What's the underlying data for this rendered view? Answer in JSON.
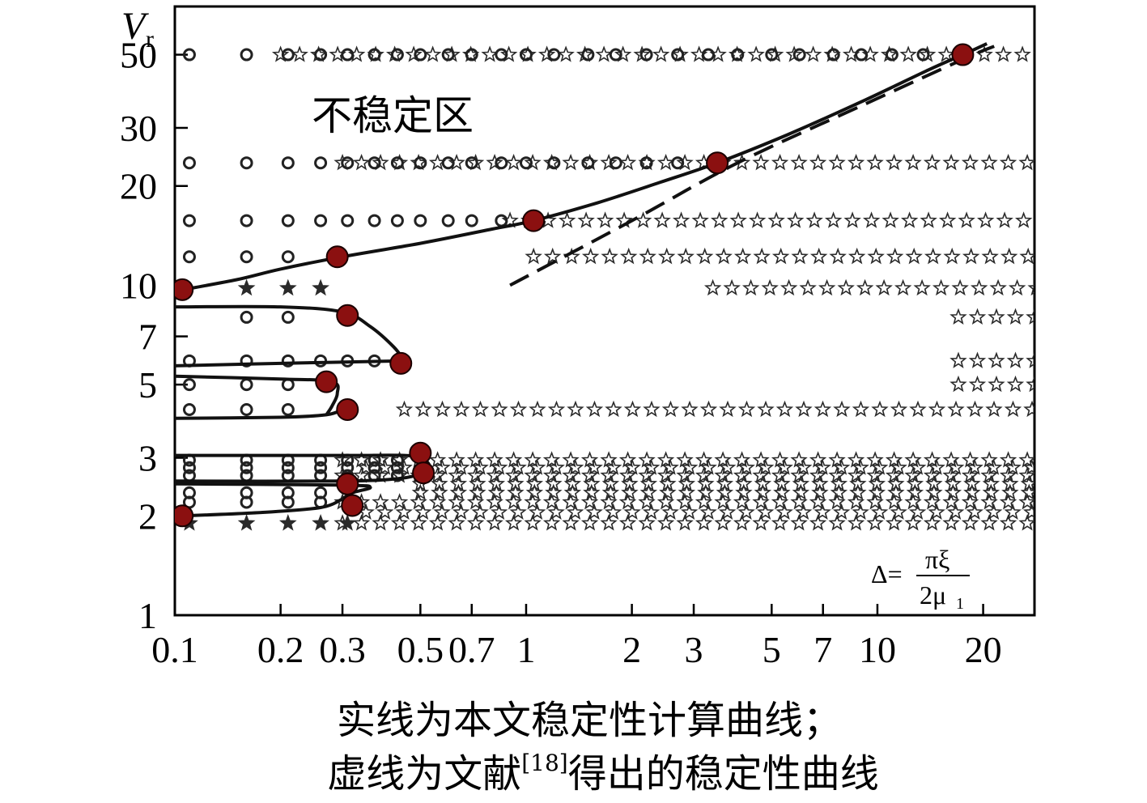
{
  "chart_data": {
    "type": "scatter",
    "title": "",
    "xlabel": "",
    "ylabel": "V",
    "ylabel_subscript": "r",
    "xscale": "log",
    "yscale": "log",
    "xlim": [
      0.1,
      28
    ],
    "ylim": [
      1,
      70
    ],
    "x_ticks": [
      0.1,
      0.2,
      0.3,
      0.5,
      0.7,
      1,
      2,
      3,
      5,
      7,
      10,
      20
    ],
    "x_tick_labels": [
      "0.1",
      "0.2",
      "0.3",
      "0.5",
      "0.7",
      "1",
      "2",
      "3",
      "5",
      "7",
      "10",
      "20"
    ],
    "y_ticks": [
      1,
      2,
      3,
      5,
      7,
      10,
      20,
      30,
      50
    ],
    "y_tick_labels": [
      "1",
      "2",
      "3",
      "5",
      "7",
      "10",
      "20",
      "30",
      "50"
    ],
    "grid": false,
    "legend": "none",
    "region_label": "不稳定区",
    "formula": {
      "lhs": "Δ=",
      "numerator": "πξ",
      "denominator": "2μ",
      "denominator_sub": "1"
    },
    "sample_levels": [
      50,
      23.5,
      15.7,
      12.2,
      9.8,
      8.0,
      5.9,
      5.0,
      4.2,
      2.95,
      2.8,
      2.65,
      2.5,
      2.35,
      2.2,
      2.05,
      1.9
    ],
    "boundary_x": [
      0.2,
      0.3,
      0.9,
      1.05,
      3.4,
      17,
      17,
      17,
      0.45,
      0.3,
      0.35,
      0.3,
      0.5,
      0.5,
      0.3,
      0.35,
      0.3,
      0.3,
      0.3,
      0.3,
      0.3
    ],
    "series": [
      {
        "role": "circles",
        "color": "#222222",
        "points": [
          {
            "x": 0.11,
            "y": 50
          },
          {
            "x": 0.16,
            "y": 50
          },
          {
            "x": 0.21,
            "y": 50
          },
          {
            "x": 0.26,
            "y": 50
          },
          {
            "x": 0.31,
            "y": 50
          },
          {
            "x": 0.37,
            "y": 50
          },
          {
            "x": 0.43,
            "y": 50
          },
          {
            "x": 0.5,
            "y": 50
          },
          {
            "x": 0.6,
            "y": 50
          },
          {
            "x": 0.7,
            "y": 50
          },
          {
            "x": 0.85,
            "y": 50
          },
          {
            "x": 1.0,
            "y": 50
          },
          {
            "x": 1.2,
            "y": 50
          },
          {
            "x": 1.5,
            "y": 50
          },
          {
            "x": 1.8,
            "y": 50
          },
          {
            "x": 2.2,
            "y": 50
          },
          {
            "x": 2.7,
            "y": 50
          },
          {
            "x": 3.3,
            "y": 50
          },
          {
            "x": 4.0,
            "y": 50
          },
          {
            "x": 5.0,
            "y": 50
          },
          {
            "x": 6.0,
            "y": 50
          },
          {
            "x": 7.5,
            "y": 50
          },
          {
            "x": 9.0,
            "y": 50
          },
          {
            "x": 11,
            "y": 50
          },
          {
            "x": 13.5,
            "y": 50
          },
          {
            "x": 0.11,
            "y": 23.5
          },
          {
            "x": 0.16,
            "y": 23.5
          },
          {
            "x": 0.21,
            "y": 23.5
          },
          {
            "x": 0.26,
            "y": 23.5
          },
          {
            "x": 0.31,
            "y": 23.5
          },
          {
            "x": 0.37,
            "y": 23.5
          },
          {
            "x": 0.43,
            "y": 23.5
          },
          {
            "x": 0.5,
            "y": 23.5
          },
          {
            "x": 0.6,
            "y": 23.5
          },
          {
            "x": 0.7,
            "y": 23.5
          },
          {
            "x": 0.85,
            "y": 23.5
          },
          {
            "x": 1.0,
            "y": 23.5
          },
          {
            "x": 1.2,
            "y": 23.5
          },
          {
            "x": 1.5,
            "y": 23.5
          },
          {
            "x": 1.8,
            "y": 23.5
          },
          {
            "x": 2.2,
            "y": 23.5
          },
          {
            "x": 2.7,
            "y": 23.5
          },
          {
            "x": 0.11,
            "y": 15.7
          },
          {
            "x": 0.16,
            "y": 15.7
          },
          {
            "x": 0.21,
            "y": 15.7
          },
          {
            "x": 0.26,
            "y": 15.7
          },
          {
            "x": 0.31,
            "y": 15.7
          },
          {
            "x": 0.37,
            "y": 15.7
          },
          {
            "x": 0.43,
            "y": 15.7
          },
          {
            "x": 0.5,
            "y": 15.7
          },
          {
            "x": 0.6,
            "y": 15.7
          },
          {
            "x": 0.7,
            "y": 15.7
          },
          {
            "x": 0.85,
            "y": 15.7
          },
          {
            "x": 0.11,
            "y": 12.2
          },
          {
            "x": 0.16,
            "y": 12.2
          },
          {
            "x": 0.21,
            "y": 12.2
          },
          {
            "x": 0.16,
            "y": 8.0
          },
          {
            "x": 0.21,
            "y": 8.0
          },
          {
            "x": 0.11,
            "y": 5.9
          },
          {
            "x": 0.16,
            "y": 5.9
          },
          {
            "x": 0.21,
            "y": 5.9
          },
          {
            "x": 0.26,
            "y": 5.9
          },
          {
            "x": 0.31,
            "y": 5.9
          },
          {
            "x": 0.37,
            "y": 5.9
          },
          {
            "x": 0.11,
            "y": 5.0
          },
          {
            "x": 0.16,
            "y": 5.0
          },
          {
            "x": 0.21,
            "y": 5.0
          },
          {
            "x": 0.11,
            "y": 4.2
          },
          {
            "x": 0.16,
            "y": 4.2
          },
          {
            "x": 0.21,
            "y": 4.2
          },
          {
            "x": 0.11,
            "y": 2.95
          },
          {
            "x": 0.16,
            "y": 2.95
          },
          {
            "x": 0.21,
            "y": 2.95
          },
          {
            "x": 0.26,
            "y": 2.95
          },
          {
            "x": 0.31,
            "y": 2.95
          },
          {
            "x": 0.37,
            "y": 2.95
          },
          {
            "x": 0.43,
            "y": 2.95
          },
          {
            "x": 0.11,
            "y": 2.8
          },
          {
            "x": 0.16,
            "y": 2.8
          },
          {
            "x": 0.21,
            "y": 2.8
          },
          {
            "x": 0.26,
            "y": 2.8
          },
          {
            "x": 0.31,
            "y": 2.8
          },
          {
            "x": 0.37,
            "y": 2.8
          },
          {
            "x": 0.43,
            "y": 2.8
          },
          {
            "x": 0.11,
            "y": 2.65
          },
          {
            "x": 0.16,
            "y": 2.65
          },
          {
            "x": 0.21,
            "y": 2.65
          },
          {
            "x": 0.26,
            "y": 2.65
          },
          {
            "x": 0.31,
            "y": 2.65
          },
          {
            "x": 0.37,
            "y": 2.65
          },
          {
            "x": 0.43,
            "y": 2.65
          },
          {
            "x": 0.11,
            "y": 2.35
          },
          {
            "x": 0.16,
            "y": 2.35
          },
          {
            "x": 0.21,
            "y": 2.35
          },
          {
            "x": 0.26,
            "y": 2.35
          },
          {
            "x": 0.11,
            "y": 2.2
          },
          {
            "x": 0.16,
            "y": 2.2
          },
          {
            "x": 0.21,
            "y": 2.2
          },
          {
            "x": 0.26,
            "y": 2.2
          }
        ]
      },
      {
        "role": "stars",
        "color": "#222222",
        "points": []
      },
      {
        "role": "solid-line",
        "color": "#111111",
        "points": [
          {
            "x": 0.1,
            "y": 9.6
          },
          {
            "x": 0.15,
            "y": 10.4
          },
          {
            "x": 0.2,
            "y": 11.2
          },
          {
            "x": 0.3,
            "y": 12.2
          },
          {
            "x": 0.5,
            "y": 13.4
          },
          {
            "x": 0.8,
            "y": 14.8
          },
          {
            "x": 1.05,
            "y": 15.7
          },
          {
            "x": 1.6,
            "y": 17.8
          },
          {
            "x": 2.4,
            "y": 20.5
          },
          {
            "x": 3.5,
            "y": 23.5
          },
          {
            "x": 5.5,
            "y": 28.5
          },
          {
            "x": 9,
            "y": 36
          },
          {
            "x": 14,
            "y": 45
          },
          {
            "x": 17.5,
            "y": 50
          },
          {
            "x": 20.5,
            "y": 54
          }
        ]
      },
      {
        "role": "dashed-line",
        "color": "#111111",
        "points": [
          {
            "x": 0.9,
            "y": 10.0
          },
          {
            "x": 2.0,
            "y": 15.7
          },
          {
            "x": 4.0,
            "y": 23.5
          },
          {
            "x": 9.0,
            "y": 35
          },
          {
            "x": 18,
            "y": 49
          },
          {
            "x": 21.5,
            "y": 53
          }
        ]
      },
      {
        "role": "loop-curves",
        "color": "#111111",
        "curves": [
          [
            {
              "x": 0.1,
              "y": 8.6
            },
            {
              "x": 0.2,
              "y": 8.6
            },
            {
              "x": 0.3,
              "y": 8.3
            },
            {
              "x": 0.36,
              "y": 7.5
            },
            {
              "x": 0.42,
              "y": 6.5
            },
            {
              "x": 0.45,
              "y": 5.9
            }
          ],
          [
            {
              "x": 0.1,
              "y": 5.7
            },
            {
              "x": 0.2,
              "y": 5.8
            },
            {
              "x": 0.45,
              "y": 5.9
            }
          ],
          [
            {
              "x": 0.1,
              "y": 5.3
            },
            {
              "x": 0.2,
              "y": 5.2
            },
            {
              "x": 0.28,
              "y": 5.1
            },
            {
              "x": 0.29,
              "y": 4.7
            },
            {
              "x": 0.28,
              "y": 4.3
            },
            {
              "x": 0.27,
              "y": 4.05
            }
          ],
          [
            {
              "x": 0.1,
              "y": 3.95
            },
            {
              "x": 0.2,
              "y": 3.98
            },
            {
              "x": 0.27,
              "y": 4.05
            },
            {
              "x": 0.3,
              "y": 4.2
            }
          ],
          [
            {
              "x": 0.1,
              "y": 3.05
            },
            {
              "x": 0.3,
              "y": 3.05
            },
            {
              "x": 0.45,
              "y": 3.05
            },
            {
              "x": 0.5,
              "y": 3.0
            },
            {
              "x": 0.53,
              "y": 2.85
            },
            {
              "x": 0.51,
              "y": 2.7
            }
          ],
          [
            {
              "x": 0.1,
              "y": 2.55
            },
            {
              "x": 0.3,
              "y": 2.55
            },
            {
              "x": 0.44,
              "y": 2.6
            },
            {
              "x": 0.51,
              "y": 2.7
            }
          ],
          [
            {
              "x": 0.1,
              "y": 2.5
            },
            {
              "x": 0.3,
              "y": 2.48
            },
            {
              "x": 0.36,
              "y": 2.44
            },
            {
              "x": 0.32,
              "y": 2.35
            },
            {
              "x": 0.3,
              "y": 2.25
            }
          ],
          [
            {
              "x": 0.105,
              "y": 2.0
            },
            {
              "x": 0.18,
              "y": 2.05
            },
            {
              "x": 0.26,
              "y": 2.12
            },
            {
              "x": 0.3,
              "y": 2.25
            }
          ]
        ]
      },
      {
        "role": "boundary-points",
        "color": "#8b1010",
        "points": [
          {
            "x": 0.105,
            "y": 9.7
          },
          {
            "x": 0.29,
            "y": 12.2
          },
          {
            "x": 1.05,
            "y": 15.7
          },
          {
            "x": 3.5,
            "y": 23.5
          },
          {
            "x": 17.5,
            "y": 50
          },
          {
            "x": 0.31,
            "y": 8.1
          },
          {
            "x": 0.44,
            "y": 5.8
          },
          {
            "x": 0.27,
            "y": 5.1
          },
          {
            "x": 0.31,
            "y": 4.2
          },
          {
            "x": 0.5,
            "y": 3.1
          },
          {
            "x": 0.51,
            "y": 2.7
          },
          {
            "x": 0.31,
            "y": 2.5
          },
          {
            "x": 0.32,
            "y": 2.15
          },
          {
            "x": 0.105,
            "y": 2.0
          }
        ]
      }
    ]
  },
  "caption": {
    "line1": "实线为本文稳定性计算曲线；",
    "line2_prefix": "虚线为文献",
    "line2_ref": "[18]",
    "line2_suffix": "得出的稳定性曲线"
  }
}
